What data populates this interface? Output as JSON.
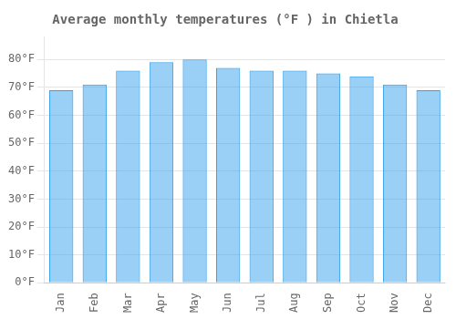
{
  "chart_data": {
    "type": "bar",
    "title": "Average monthly temperatures (°F ) in Chietla",
    "categories": [
      "Jan",
      "Feb",
      "Mar",
      "Apr",
      "May",
      "Jun",
      "Jul",
      "Aug",
      "Sep",
      "Oct",
      "Nov",
      "Dec"
    ],
    "values": [
      69,
      71,
      76,
      79,
      80,
      77,
      76,
      76,
      75,
      74,
      71,
      69
    ],
    "ylim": [
      0,
      88
    ],
    "yticks": [
      {
        "value": 0,
        "label": "0°F"
      },
      {
        "value": 10,
        "label": "10°F"
      },
      {
        "value": 20,
        "label": "20°F"
      },
      {
        "value": 30,
        "label": "30°F"
      },
      {
        "value": 40,
        "label": "40°F"
      },
      {
        "value": 50,
        "label": "50°F"
      },
      {
        "value": 60,
        "label": "60°F"
      },
      {
        "value": 70,
        "label": "70°F"
      },
      {
        "value": 80,
        "label": "80°F"
      }
    ],
    "grid": true
  }
}
